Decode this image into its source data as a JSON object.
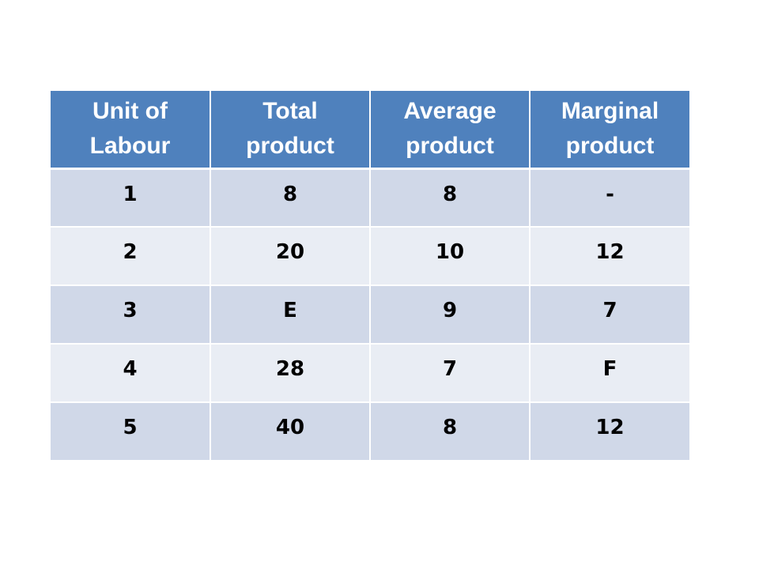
{
  "table": {
    "headers": [
      "Unit of\nLabour",
      "Total\nproduct",
      "Average\nproduct",
      "Marginal\nproduct"
    ],
    "rows": [
      [
        "1",
        "8",
        "8",
        "-"
      ],
      [
        "2",
        "20",
        "10",
        "12"
      ],
      [
        "3",
        "E",
        "9",
        "7"
      ],
      [
        "4",
        "28",
        "7",
        "F"
      ],
      [
        "5",
        "40",
        "8",
        "12"
      ]
    ]
  },
  "colors": {
    "header_bg": "#4f81bd",
    "row_odd": "#d0d8e8",
    "row_even": "#e9edf4"
  }
}
